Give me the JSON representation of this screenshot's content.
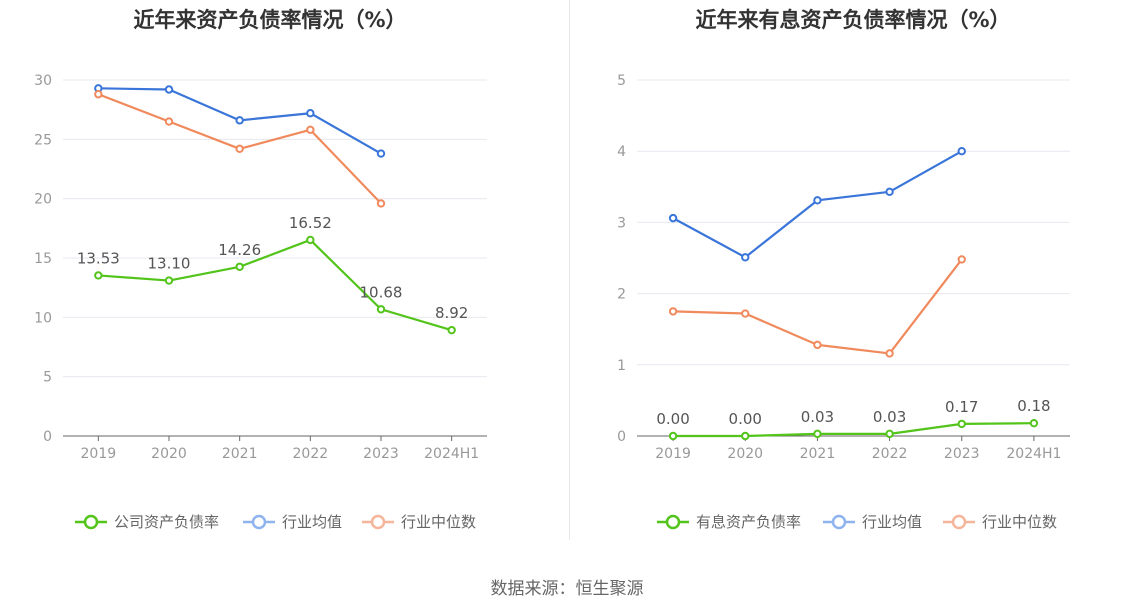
{
  "chart_data": [
    {
      "type": "line",
      "title": "近年来资产负债率情况（%）",
      "categories": [
        "2019",
        "2020",
        "2021",
        "2022",
        "2023",
        "2024H1"
      ],
      "ylim": [
        0,
        30
      ],
      "yticks": [
        0,
        5,
        10,
        15,
        20,
        25,
        30
      ],
      "grid": true,
      "legend_position": "bottom",
      "series": [
        {
          "name": "公司资产负债率",
          "color": "#52c41a",
          "values": [
            13.53,
            13.1,
            14.26,
            16.52,
            10.68,
            8.92
          ],
          "labels": [
            "13.53",
            "13.10",
            "14.26",
            "16.52",
            "10.68",
            "8.92"
          ]
        },
        {
          "name": "行业均值",
          "color": "#3a75d9",
          "values": [
            29.3,
            29.2,
            26.6,
            27.2,
            23.8,
            null
          ]
        },
        {
          "name": "行业中位数",
          "color": "#f08a5d",
          "values": [
            28.8,
            26.5,
            24.2,
            25.8,
            19.6,
            null
          ]
        }
      ]
    },
    {
      "type": "line",
      "title": "近年来有息资产负债率情况（%）",
      "categories": [
        "2019",
        "2020",
        "2021",
        "2022",
        "2023",
        "2024H1"
      ],
      "ylim": [
        0,
        5
      ],
      "yticks": [
        0,
        1,
        2,
        3,
        4,
        5
      ],
      "grid": true,
      "legend_position": "bottom",
      "series": [
        {
          "name": "有息资产负债率",
          "color": "#52c41a",
          "values": [
            0.0,
            0.0,
            0.03,
            0.03,
            0.17,
            0.18
          ],
          "labels": [
            "0.00",
            "0.00",
            "0.03",
            "0.03",
            "0.17",
            "0.18"
          ]
        },
        {
          "name": "行业均值",
          "color": "#3a75d9",
          "values": [
            3.06,
            2.51,
            3.31,
            3.43,
            4.0,
            null
          ]
        },
        {
          "name": "行业中位数",
          "color": "#f08a5d",
          "values": [
            1.75,
            1.72,
            1.28,
            1.16,
            2.48,
            null
          ]
        }
      ]
    }
  ],
  "legend_colors": [
    "#52c41a",
    "#8fb3ef",
    "#f5b59a"
  ],
  "source": "数据来源：恒生聚源"
}
